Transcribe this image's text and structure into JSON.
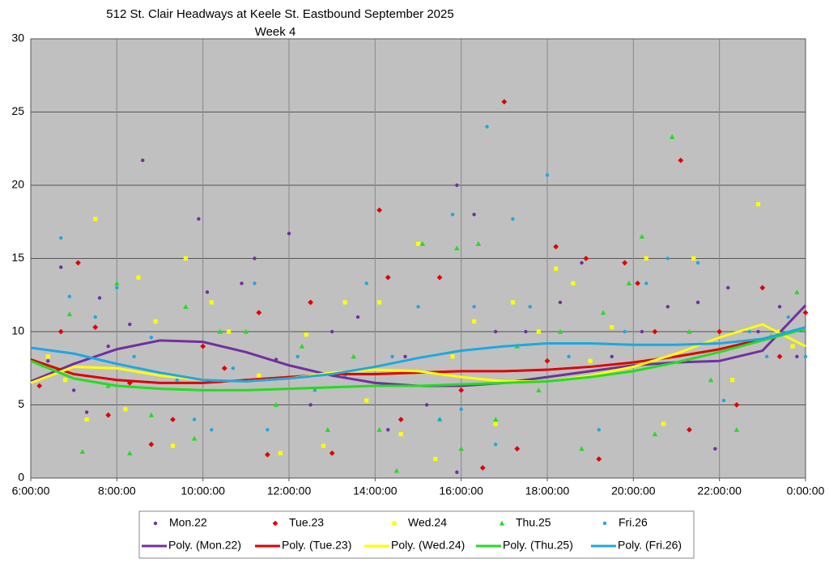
{
  "chart_data": {
    "type": "scatter",
    "title": "512 St. Clair Headways at Keele St. Eastbound September 2025",
    "subtitle": "Week 4",
    "xlim": [
      6,
      24
    ],
    "ylim": [
      0,
      30
    ],
    "xticks": [
      {
        "value": 6,
        "label": "6:00:00"
      },
      {
        "value": 8,
        "label": "8:00:00"
      },
      {
        "value": 10,
        "label": "10:00:00"
      },
      {
        "value": 12,
        "label": "12:00:00"
      },
      {
        "value": 14,
        "label": "14:00:00"
      },
      {
        "value": 16,
        "label": "16:00:00"
      },
      {
        "value": 18,
        "label": "18:00:00"
      },
      {
        "value": 20,
        "label": "20:00:00"
      },
      {
        "value": 22,
        "label": "22:00:00"
      },
      {
        "value": 24,
        "label": "0:00:00"
      }
    ],
    "yticks": [
      0,
      5,
      10,
      15,
      20,
      25,
      30
    ],
    "grid": true,
    "legend": "bottom",
    "background": "#c0c0c0",
    "series": [
      {
        "name": "Mon.22",
        "kind": "scatter",
        "marker": "circle",
        "color": "#7030a0",
        "x": [
          6.4,
          6.7,
          7.0,
          7.3,
          7.6,
          7.8,
          8.3,
          8.6,
          8.8,
          9.2,
          9.9,
          10.1,
          10.9,
          11.2,
          11.7,
          12.0,
          12.5,
          13.0,
          13.6,
          14.3,
          14.7,
          15.2,
          15.9,
          15.9,
          16.3,
          16.8,
          17.5,
          18.3,
          18.8,
          19.5,
          20.2,
          20.8,
          21.5,
          21.9,
          22.2,
          22.9,
          23.4,
          23.8
        ],
        "values": [
          8.0,
          14.4,
          6.0,
          4.5,
          12.3,
          9.0,
          10.5,
          21.7,
          2.3,
          7.0,
          17.7,
          12.7,
          13.3,
          15.0,
          8.1,
          16.7,
          5.0,
          10.0,
          11.0,
          3.3,
          8.3,
          5.0,
          20.0,
          0.4,
          18.0,
          10.0,
          10.0,
          12.0,
          14.7,
          8.3,
          10.0,
          11.7,
          12.0,
          2.0,
          13.0,
          10.0,
          11.7,
          8.3
        ]
      },
      {
        "name": "Tue.23",
        "kind": "scatter",
        "marker": "diamond",
        "color": "#e00000",
        "x": [
          6.2,
          6.7,
          7.1,
          7.5,
          7.8,
          8.3,
          8.8,
          9.3,
          10.0,
          10.5,
          11.3,
          11.5,
          12.5,
          13.0,
          14.1,
          14.3,
          14.6,
          15.5,
          16.0,
          16.5,
          17.0,
          17.3,
          18.0,
          18.2,
          18.9,
          19.2,
          19.8,
          20.1,
          20.5,
          21.1,
          21.3,
          22.0,
          22.4,
          23.0,
          23.4,
          24.0
        ],
        "values": [
          6.3,
          10.0,
          14.7,
          10.3,
          4.3,
          6.5,
          2.3,
          4.0,
          9.0,
          7.5,
          11.3,
          1.6,
          12.0,
          1.7,
          18.3,
          13.7,
          4.0,
          13.7,
          6.0,
          0.7,
          25.7,
          2.0,
          8.0,
          15.8,
          15.0,
          1.3,
          14.7,
          13.3,
          10.0,
          21.7,
          3.3,
          10.0,
          5.0,
          13.0,
          8.3,
          11.3
        ]
      },
      {
        "name": "Wed.24",
        "kind": "scatter",
        "marker": "square",
        "color": "#ffff00",
        "x": [
          6.4,
          6.8,
          7.3,
          7.5,
          8.2,
          8.5,
          8.9,
          9.3,
          9.6,
          10.2,
          10.6,
          11.3,
          11.8,
          12.4,
          12.8,
          13.3,
          13.8,
          14.1,
          14.6,
          15.0,
          15.4,
          15.8,
          16.3,
          16.8,
          17.2,
          17.8,
          18.2,
          18.6,
          19.0,
          19.5,
          20.3,
          20.7,
          21.4,
          22.3,
          22.9,
          23.4,
          23.7
        ],
        "values": [
          8.3,
          6.7,
          4.0,
          17.7,
          4.7,
          13.7,
          10.7,
          2.2,
          15.0,
          12.0,
          10.0,
          7.0,
          1.7,
          9.8,
          2.2,
          12.0,
          5.3,
          12.0,
          3.0,
          16.0,
          1.3,
          8.3,
          10.7,
          3.7,
          12.0,
          10.0,
          14.3,
          13.3,
          8.0,
          10.3,
          15.0,
          3.7,
          15.0,
          6.7,
          18.7,
          10.0,
          9.0
        ]
      },
      {
        "name": "Thu.25",
        "kind": "scatter",
        "marker": "triangle",
        "color": "#22dd22",
        "x": [
          6.3,
          6.9,
          7.2,
          7.8,
          8.0,
          8.3,
          8.8,
          9.6,
          9.8,
          10.4,
          11.0,
          11.7,
          12.3,
          12.9,
          13.5,
          14.1,
          14.5,
          15.1,
          15.5,
          15.9,
          16.0,
          16.4,
          16.8,
          17.3,
          17.8,
          18.3,
          18.8,
          19.3,
          19.9,
          20.2,
          20.5,
          20.9,
          21.3,
          21.8,
          22.4,
          23.2,
          23.8
        ],
        "values": [
          7.7,
          11.2,
          1.8,
          6.3,
          13.3,
          1.7,
          4.3,
          11.7,
          2.7,
          10.0,
          10.0,
          5.0,
          9.0,
          3.3,
          8.3,
          3.3,
          0.5,
          16.0,
          4.0,
          15.7,
          2.0,
          16.0,
          4.0,
          9.0,
          6.0,
          10.0,
          2.0,
          11.3,
          13.3,
          16.5,
          3.0,
          23.3,
          10.0,
          6.7,
          3.3,
          9.7,
          12.7
        ]
      },
      {
        "name": "Fri.26",
        "kind": "scatter",
        "marker": "circle",
        "color": "#1ea7e0",
        "x": [
          6.7,
          6.9,
          7.5,
          8.0,
          8.4,
          8.8,
          9.4,
          9.8,
          10.2,
          10.7,
          11.2,
          11.5,
          12.2,
          12.6,
          13.3,
          13.8,
          14.4,
          15.0,
          15.5,
          15.8,
          16.0,
          16.3,
          16.6,
          16.8,
          17.2,
          17.6,
          18.0,
          18.5,
          19.2,
          19.8,
          20.3,
          20.8,
          21.5,
          22.1,
          22.7,
          23.1,
          23.6,
          24.0
        ],
        "values": [
          16.4,
          12.4,
          11.0,
          13.0,
          8.3,
          9.6,
          6.7,
          4.0,
          3.3,
          7.5,
          13.3,
          3.3,
          8.3,
          6.0,
          7.0,
          13.3,
          8.3,
          11.7,
          4.0,
          18.0,
          4.7,
          11.7,
          24.0,
          2.3,
          17.7,
          11.7,
          20.7,
          8.3,
          3.3,
          10.0,
          13.3,
          15.0,
          14.7,
          5.3,
          10.0,
          8.3,
          11.0,
          8.3
        ]
      },
      {
        "name": "Poly. (Mon.22)",
        "kind": "line",
        "color": "#7030a0",
        "x": [
          6,
          7,
          8,
          9,
          10,
          11,
          12,
          13,
          14,
          15,
          16,
          17,
          18,
          19,
          20,
          21,
          22,
          23,
          24
        ],
        "values": [
          6.6,
          7.8,
          8.8,
          9.4,
          9.3,
          8.6,
          7.7,
          7.0,
          6.5,
          6.3,
          6.3,
          6.5,
          6.9,
          7.3,
          7.7,
          7.9,
          8.0,
          8.7,
          11.8
        ]
      },
      {
        "name": "Poly. (Tue.23)",
        "kind": "line",
        "color": "#e00000",
        "x": [
          6,
          7,
          8,
          9,
          10,
          11,
          12,
          13,
          14,
          15,
          16,
          17,
          18,
          19,
          20,
          21,
          22,
          23,
          24
        ],
        "values": [
          8.1,
          7.1,
          6.7,
          6.5,
          6.5,
          6.7,
          6.9,
          7.1,
          7.1,
          7.2,
          7.3,
          7.3,
          7.4,
          7.6,
          7.9,
          8.3,
          8.8,
          9.5,
          10.2
        ]
      },
      {
        "name": "Poly. (Wed.24)",
        "kind": "line",
        "color": "#ffff00",
        "x": [
          6,
          7,
          8,
          9,
          10,
          11,
          12,
          13,
          14,
          15,
          16,
          17,
          18,
          19,
          20,
          21,
          22,
          23,
          24
        ],
        "values": [
          6.5,
          7.6,
          7.5,
          7.0,
          6.7,
          6.6,
          6.8,
          7.2,
          7.4,
          7.3,
          6.9,
          6.6,
          6.6,
          7.0,
          7.6,
          8.5,
          9.6,
          10.5,
          9.0
        ]
      },
      {
        "name": "Poly. (Thu.25)",
        "kind": "line",
        "color": "#22dd22",
        "x": [
          6,
          7,
          8,
          9,
          10,
          11,
          12,
          13,
          14,
          15,
          16,
          17,
          18,
          19,
          20,
          21,
          22,
          23,
          24
        ],
        "values": [
          8.0,
          6.8,
          6.3,
          6.1,
          6.0,
          6.0,
          6.1,
          6.2,
          6.3,
          6.3,
          6.4,
          6.5,
          6.6,
          6.9,
          7.3,
          7.9,
          8.6,
          9.4,
          10.2
        ]
      },
      {
        "name": "Poly. (Fri.26)",
        "kind": "line",
        "color": "#1ea7e0",
        "x": [
          6,
          7,
          8,
          9,
          10,
          11,
          12,
          13,
          14,
          15,
          16,
          17,
          18,
          19,
          20,
          21,
          22,
          23,
          24
        ],
        "values": [
          8.9,
          8.5,
          7.8,
          7.2,
          6.7,
          6.6,
          6.8,
          7.1,
          7.6,
          8.2,
          8.7,
          9.0,
          9.2,
          9.2,
          9.1,
          9.1,
          9.2,
          9.5,
          10.3
        ]
      }
    ]
  }
}
